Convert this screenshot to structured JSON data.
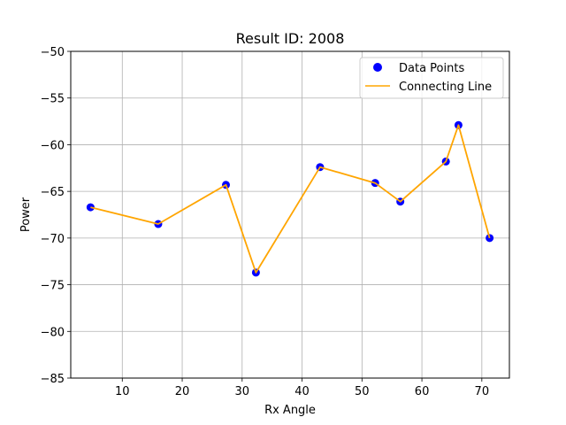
{
  "chart_data": {
    "type": "scatter",
    "title": "Result ID: 2008",
    "xlabel": "Rx Angle",
    "ylabel": "Power",
    "xlim": [
      1.4,
      74.6
    ],
    "ylim": [
      -85,
      -50
    ],
    "xticks": [
      10,
      20,
      30,
      40,
      50,
      60,
      70
    ],
    "yticks": [
      -85,
      -80,
      -75,
      -70,
      -65,
      -60,
      -55,
      -50
    ],
    "xtick_labels": [
      "10",
      "20",
      "30",
      "40",
      "50",
      "60",
      "70"
    ],
    "ytick_labels": [
      "−85",
      "−80",
      "−75",
      "−70",
      "−65",
      "−60",
      "−55",
      "−50"
    ],
    "grid": true,
    "legend": {
      "placement": "top-right",
      "entries": [
        "Data Points",
        "Connecting Line"
      ]
    },
    "series": [
      {
        "name": "Data Points",
        "kind": "scatter",
        "color": "#0000ff",
        "x": [
          4.7,
          16.0,
          27.3,
          32.3,
          43.0,
          52.2,
          56.4,
          64.0,
          66.1,
          71.3
        ],
        "y": [
          -66.7,
          -68.5,
          -64.3,
          -73.7,
          -62.4,
          -64.1,
          -66.1,
          -61.8,
          -57.9,
          -70.0
        ]
      },
      {
        "name": "Connecting Line",
        "kind": "line",
        "color": "#ffa500",
        "x": [
          4.7,
          16.0,
          27.3,
          32.3,
          43.0,
          52.2,
          56.4,
          64.0,
          66.1,
          71.3
        ],
        "y": [
          -66.7,
          -68.5,
          -64.3,
          -73.7,
          -62.4,
          -64.1,
          -66.1,
          -61.8,
          -57.9,
          -70.0
        ]
      }
    ]
  }
}
